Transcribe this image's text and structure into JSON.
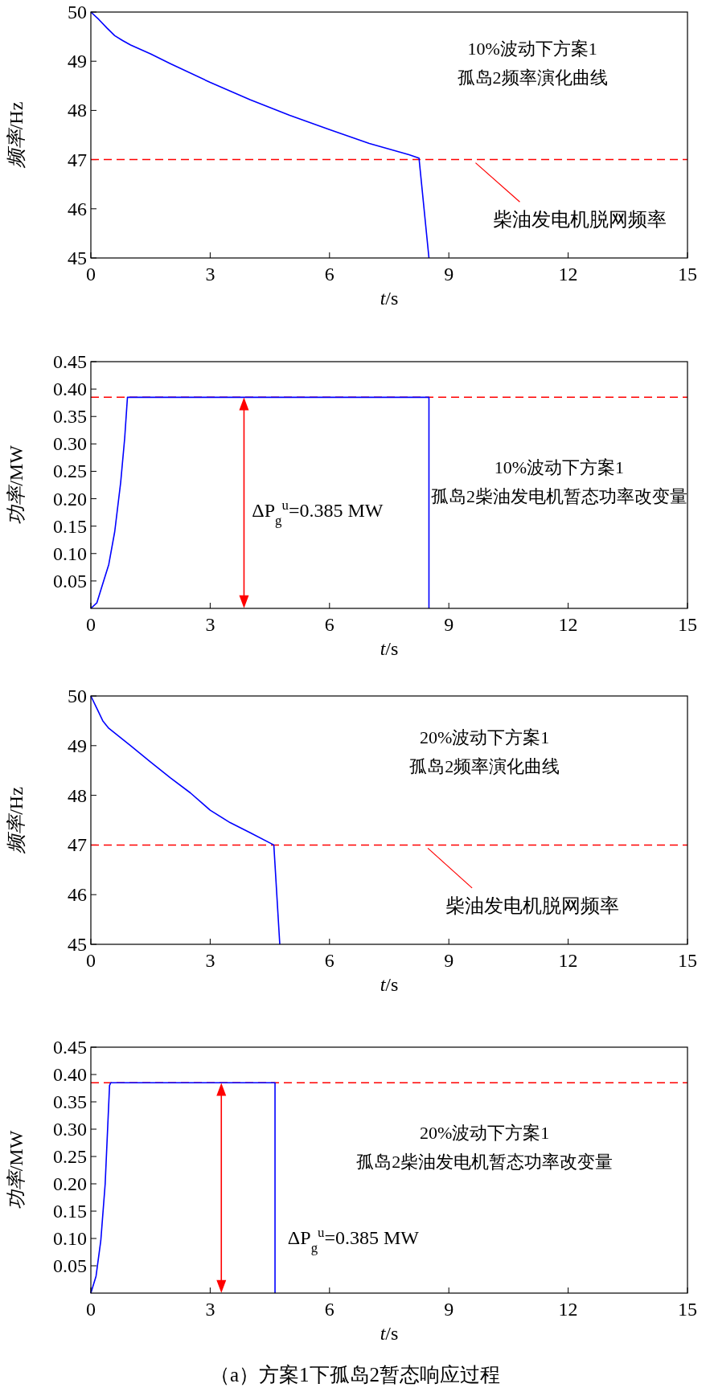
{
  "chart_data": [
    {
      "type": "line",
      "xlabel": "t/s",
      "ylabel": "频率/Hz",
      "xlim": [
        0,
        15
      ],
      "xticks": [
        0,
        3,
        6,
        9,
        12,
        15
      ],
      "ylim": [
        45,
        50
      ],
      "yticks": [
        45,
        46,
        47,
        48,
        49,
        50
      ],
      "series": [
        {
          "color": "#0000ff",
          "x": [
            0,
            0.2,
            0.4,
            0.6,
            0.8,
            1,
            1.5,
            2,
            3,
            4,
            5,
            6,
            7,
            8,
            8.25,
            8.5
          ],
          "values": [
            50,
            49.85,
            49.68,
            49.52,
            49.42,
            49.33,
            49.15,
            48.95,
            48.57,
            48.22,
            47.9,
            47.61,
            47.33,
            47.1,
            47.03,
            45
          ]
        }
      ],
      "ref_lines": [
        {
          "axis": "y",
          "value": 47,
          "label": "柴油发电机脱网频率",
          "color": "#ff0000",
          "line_style": "dashed"
        }
      ],
      "annotations": [
        "10%波动下方案1\n孤岛2频率演化曲线"
      ]
    },
    {
      "type": "line",
      "xlabel": "t/s",
      "ylabel": "功率/MW",
      "xlim": [
        0,
        15
      ],
      "xticks": [
        0,
        3,
        6,
        9,
        12,
        15
      ],
      "ylim": [
        0,
        0.45
      ],
      "yticks": [
        {
          "value": 0.05,
          "label": "0.05"
        },
        {
          "value": 0.1,
          "label": "0.10"
        },
        {
          "value": 0.15,
          "label": "0.15"
        },
        {
          "value": 0.2,
          "label": "0.20"
        },
        {
          "value": 0.25,
          "label": "0.25"
        },
        {
          "value": 0.3,
          "label": "0.30"
        },
        {
          "value": 0.35,
          "label": "0.35"
        },
        {
          "value": 0.4,
          "label": "0.40"
        },
        {
          "value": 0.45,
          "label": "0.45"
        }
      ],
      "series": [
        {
          "color": "#0000ff",
          "x": [
            0,
            0.15,
            0.3,
            0.45,
            0.6,
            0.75,
            0.85,
            0.92,
            8.5,
            8.5
          ],
          "values": [
            0,
            0.01,
            0.045,
            0.08,
            0.14,
            0.23,
            0.31,
            0.385,
            0.385,
            0
          ]
        },
        {
          "color": "#ff0000",
          "marker": "triangle",
          "x": [
            3.85,
            3.85
          ],
          "values": [
            0.016,
            0.369
          ]
        }
      ],
      "ref_lines": [
        {
          "axis": "y",
          "value": 0.385,
          "color": "#ff0000",
          "line_style": "dashed"
        }
      ],
      "annotations": [
        "10%波动下方案1\n孤岛2柴油发电机暂态功率改变量",
        "ΔP$_{g}$$^{u}$=0.385 MW"
      ]
    },
    {
      "type": "line",
      "xlabel": "t/s",
      "ylabel": "频率/Hz",
      "xlim": [
        0,
        15
      ],
      "xticks": [
        0,
        3,
        6,
        9,
        12,
        15
      ],
      "ylim": [
        45,
        50
      ],
      "yticks": [
        45,
        46,
        47,
        48,
        49,
        50
      ],
      "series": [
        {
          "color": "#0000ff",
          "x": [
            0,
            0.15,
            0.3,
            0.45,
            1,
            1.5,
            2,
            2.5,
            3,
            3.5,
            4,
            4.6,
            4.75
          ],
          "values": [
            50,
            49.75,
            49.5,
            49.35,
            49.0,
            48.67,
            48.35,
            48.05,
            47.7,
            47.45,
            47.25,
            47.0,
            45
          ]
        }
      ],
      "ref_lines": [
        {
          "axis": "y",
          "value": 47,
          "label": "柴油发电机脱网频率",
          "color": "#ff0000",
          "line_style": "dashed"
        }
      ],
      "annotations": [
        "20%波动下方案1\n孤岛2频率演化曲线"
      ]
    },
    {
      "type": "line",
      "xlabel": "t/s",
      "ylabel": "功率/MW",
      "xlim": [
        0,
        15
      ],
      "xticks": [
        0,
        3,
        6,
        9,
        12,
        15
      ],
      "ylim": [
        0,
        0.45
      ],
      "yticks": [
        {
          "value": 0.05,
          "label": "0.05"
        },
        {
          "value": 0.1,
          "label": "0.10"
        },
        {
          "value": 0.15,
          "label": "0.15"
        },
        {
          "value": 0.2,
          "label": "0.20"
        },
        {
          "value": 0.25,
          "label": "0.25"
        },
        {
          "value": 0.3,
          "label": "0.30"
        },
        {
          "value": 0.35,
          "label": "0.35"
        },
        {
          "value": 0.4,
          "label": "0.40"
        },
        {
          "value": 0.45,
          "label": "0.45"
        }
      ],
      "series": [
        {
          "color": "#0000ff",
          "x": [
            0,
            0.13,
            0.25,
            0.36,
            0.47,
            0.5,
            4.63,
            4.63
          ],
          "values": [
            0,
            0.031,
            0.096,
            0.2,
            0.38,
            0.385,
            0.385,
            0
          ]
        },
        {
          "color": "#ff0000",
          "marker": "triangle",
          "x": [
            3.28,
            3.28
          ],
          "values": [
            0.016,
            0.369
          ]
        }
      ],
      "ref_lines": [
        {
          "axis": "y",
          "value": 0.385,
          "color": "#ff0000",
          "line_style": "dashed"
        }
      ],
      "annotations": [
        "20%波动下方案1\n孤岛2柴油发电机暂态功率改变量",
        "ΔP$_{g}$$^{u}$=0.385 MW",
        "（a）方案1下孤岛2暂态响应过程"
      ]
    }
  ]
}
